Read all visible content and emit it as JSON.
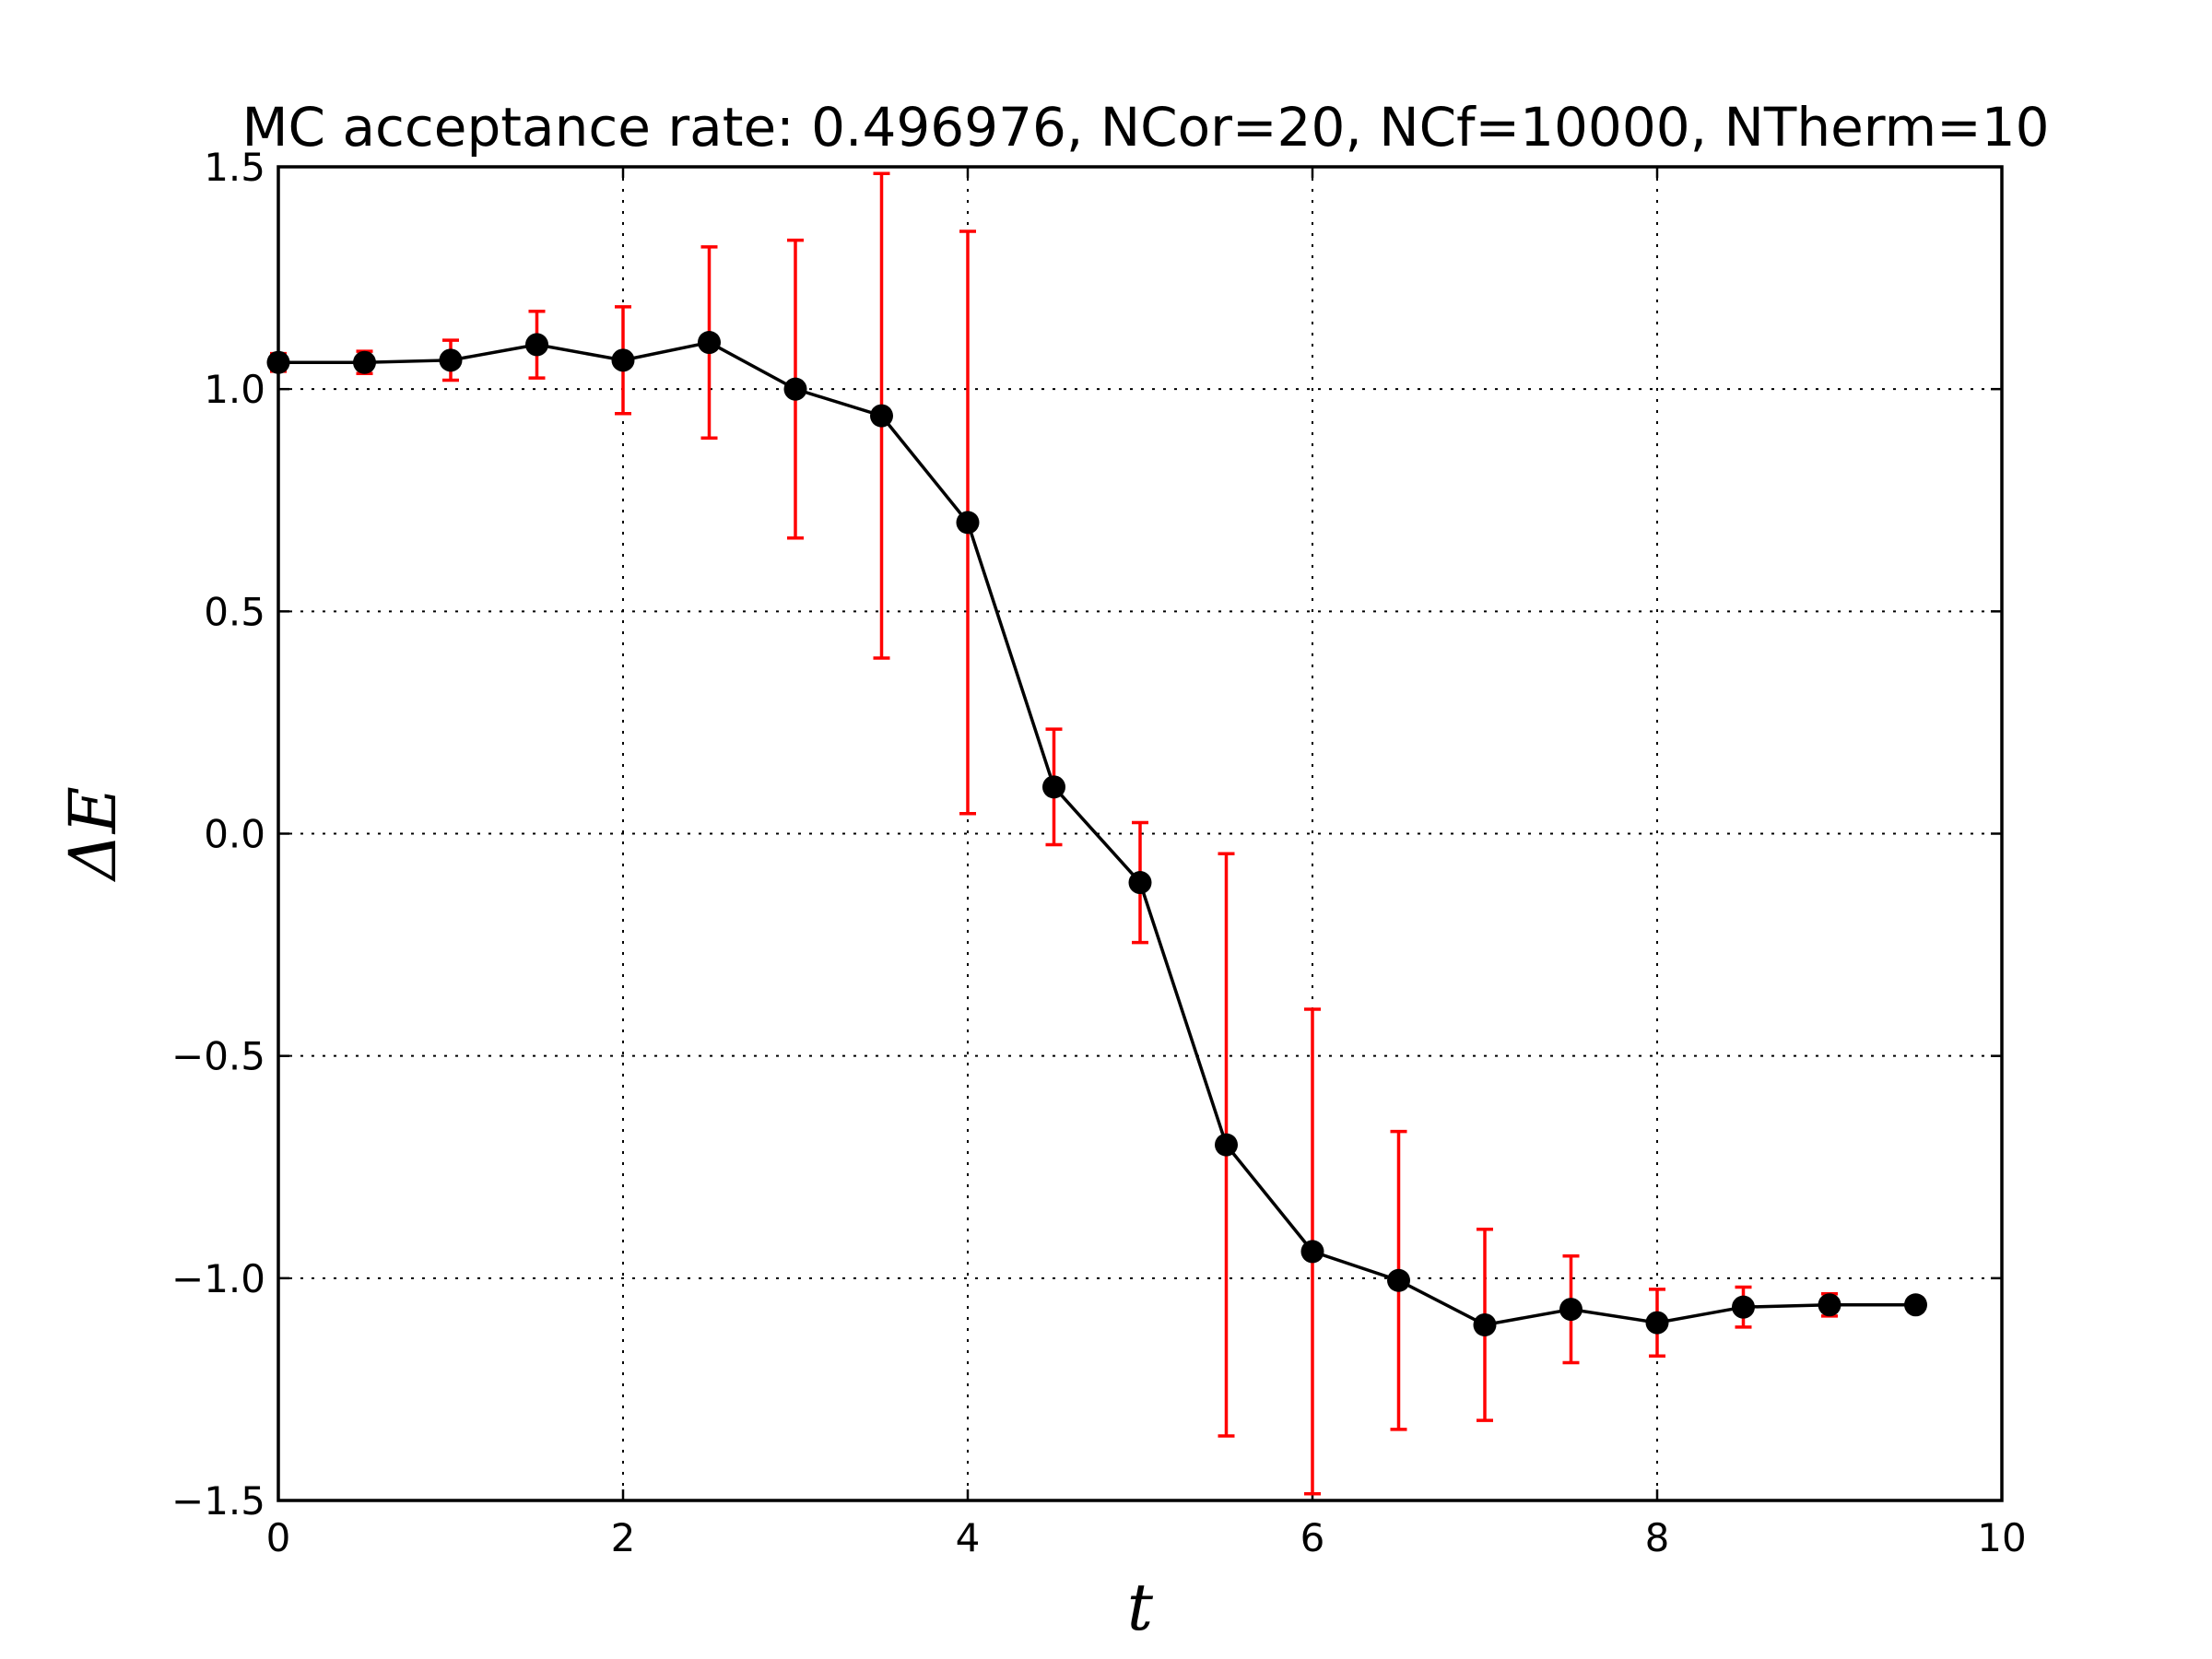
{
  "chart_data": {
    "type": "line",
    "title": "MC acceptance rate: 0.496976, NCor=20, NCf=10000, NTherm=10",
    "xlabel": "t",
    "ylabel": "ΔE",
    "xlim": [
      0,
      10
    ],
    "ylim": [
      -1.5,
      1.5
    ],
    "xticks": [
      0,
      2,
      4,
      6,
      8,
      10
    ],
    "yticks": [
      -1.5,
      -1.0,
      -0.5,
      0.0,
      0.5,
      1.0,
      1.5
    ],
    "xtick_labels": [
      "0",
      "2",
      "4",
      "6",
      "8",
      "10"
    ],
    "ytick_labels": [
      "−1.5",
      "−1.0",
      "−0.5",
      "0.0",
      "0.5",
      "1.0",
      "1.5"
    ],
    "grid": true,
    "colors": {
      "line": "#000000",
      "marker": "#000000",
      "errorbar": "#ff0000"
    },
    "series": [
      {
        "x": [
          0,
          0.5,
          1.0,
          1.5,
          2.0,
          2.5,
          3.0,
          3.5,
          4.0,
          4.5,
          5.0,
          5.5,
          6.0,
          6.5,
          7.0,
          7.5,
          8.0,
          8.5,
          9.0,
          9.5
        ],
        "y": [
          1.06,
          1.06,
          1.065,
          1.1,
          1.065,
          1.105,
          1.0,
          0.94,
          0.7,
          0.105,
          -0.11,
          -0.7,
          -0.94,
          -1.005,
          -1.105,
          -1.07,
          -1.1,
          -1.065,
          -1.06,
          -1.06
        ],
        "yerr": [
          0.02,
          0.025,
          0.045,
          0.075,
          0.12,
          0.215,
          0.335,
          0.545,
          0.655,
          0.13,
          0.135,
          0.655,
          0.545,
          0.335,
          0.215,
          0.12,
          0.075,
          0.045,
          0.025,
          0.015
        ]
      }
    ]
  }
}
